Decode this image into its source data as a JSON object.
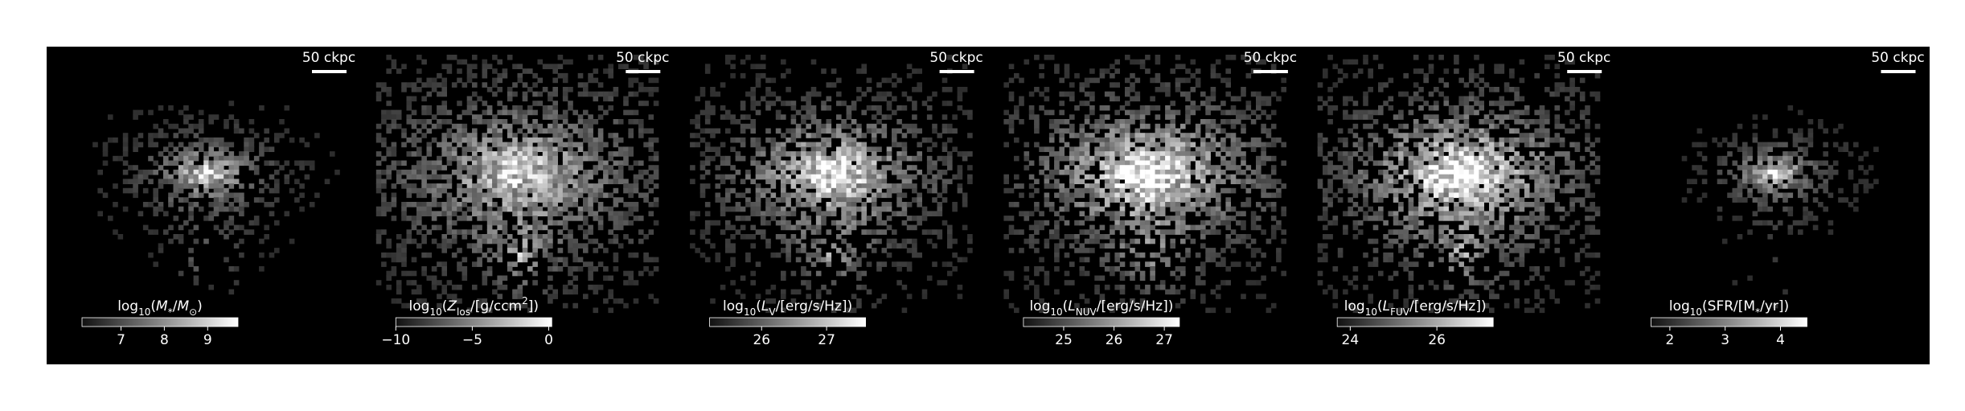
{
  "chart_data": [
    {
      "type": "colormap",
      "scale_bar": "50 ckpc",
      "label": [
        {
          "text": "log"
        },
        {
          "text": "10",
          "style": "sub"
        },
        {
          "text": "("
        },
        {
          "text": "M",
          "style": "italic"
        },
        {
          "text": "*",
          "style": "sub"
        },
        {
          "text": "/"
        },
        {
          "text": "M",
          "style": "italic"
        },
        {
          "text": "⊙",
          "style": "sub"
        },
        {
          "text": ")"
        }
      ],
      "clim": [
        6.1,
        9.7
      ],
      "ticks": [
        7,
        8,
        9
      ]
    },
    {
      "type": "colormap",
      "scale_bar": "50 ckpc",
      "label": [
        {
          "text": "log"
        },
        {
          "text": "10",
          "style": "sub"
        },
        {
          "text": "("
        },
        {
          "text": "Z",
          "style": "italic"
        },
        {
          "text": "los",
          "style": "sub"
        },
        {
          "text": "/[g/ccm"
        },
        {
          "text": "2",
          "style": "sup"
        },
        {
          "text": "])"
        }
      ],
      "clim": [
        -10,
        0.2
      ],
      "ticks": [
        {
          "value": -10,
          "label": "−10"
        },
        {
          "value": -5,
          "label": "−5"
        },
        0
      ]
    },
    {
      "type": "colormap",
      "scale_bar": "50 ckpc",
      "label": [
        {
          "text": "log"
        },
        {
          "text": "10",
          "style": "sub"
        },
        {
          "text": "("
        },
        {
          "text": "L",
          "style": "italic"
        },
        {
          "text": "V",
          "style": "sub"
        },
        {
          "text": "/[erg/s/Hz])"
        }
      ],
      "clim": [
        25.2,
        27.6
      ],
      "ticks": [
        26,
        27
      ]
    },
    {
      "type": "colormap",
      "scale_bar": "50 ckpc",
      "label": [
        {
          "text": "log"
        },
        {
          "text": "10",
          "style": "sub"
        },
        {
          "text": "("
        },
        {
          "text": "L",
          "style": "italic"
        },
        {
          "text": "NUV",
          "style": "sub"
        },
        {
          "text": "/[erg/s/Hz])"
        }
      ],
      "clim": [
        24.2,
        27.3
      ],
      "ticks": [
        25,
        26,
        27
      ]
    },
    {
      "type": "colormap",
      "scale_bar": "50 ckpc",
      "label": [
        {
          "text": "log"
        },
        {
          "text": "10",
          "style": "sub"
        },
        {
          "text": "("
        },
        {
          "text": "L",
          "style": "italic"
        },
        {
          "text": "FUV",
          "style": "sub"
        },
        {
          "text": "/[erg/s/Hz])"
        }
      ],
      "clim": [
        23.7,
        27.3
      ],
      "ticks": [
        24,
        26
      ]
    },
    {
      "type": "colormap",
      "scale_bar": "50 ckpc",
      "label": [
        {
          "text": "log"
        },
        {
          "text": "10",
          "style": "sub"
        },
        {
          "text": "(SFR/[M"
        },
        {
          "text": "*",
          "style": "sub"
        },
        {
          "text": "/yr])"
        }
      ],
      "clim": [
        1.66,
        4.48
      ],
      "ticks": [
        2,
        3,
        4
      ]
    }
  ]
}
